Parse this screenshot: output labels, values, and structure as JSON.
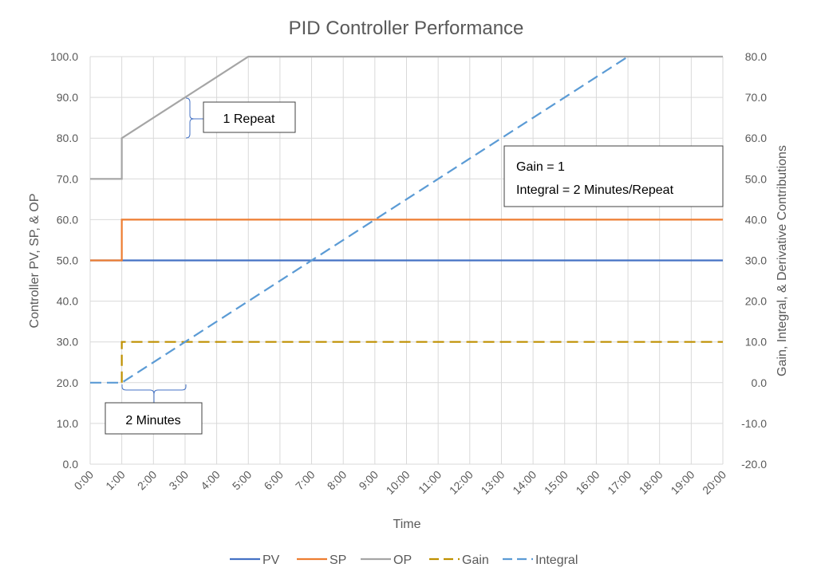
{
  "chart_data": {
    "type": "line",
    "title": "PID Controller Performance",
    "xlabel": "Time",
    "ylabel": "Controller PV, SP, & OP",
    "y2label": "Gain, Integral, & Derivative Contributions",
    "xlim": [
      0,
      20
    ],
    "ylim": [
      0,
      100
    ],
    "y2lim": [
      -20,
      80
    ],
    "grid": true,
    "legend": "bottom",
    "x_ticks": [
      "0:00",
      "1:00",
      "2:00",
      "3:00",
      "4:00",
      "5:00",
      "6:00",
      "7:00",
      "8:00",
      "9:00",
      "10:00",
      "11:00",
      "12:00",
      "13:00",
      "14:00",
      "15:00",
      "16:00",
      "17:00",
      "18:00",
      "19:00",
      "20:00"
    ],
    "y_ticks": [
      "0.0",
      "10.0",
      "20.0",
      "30.0",
      "40.0",
      "50.0",
      "60.0",
      "70.0",
      "80.0",
      "90.0",
      "100.0"
    ],
    "y2_ticks": [
      "-20.0",
      "-10.0",
      "0.0",
      "10.0",
      "20.0",
      "30.0",
      "40.0",
      "50.0",
      "60.0",
      "70.0",
      "80.0"
    ],
    "series": [
      {
        "name": "PV",
        "axis": "left",
        "color": "#4472C4",
        "dash": false,
        "points": [
          [
            "0:00",
            50
          ],
          [
            "20:00",
            50
          ]
        ]
      },
      {
        "name": "SP",
        "axis": "left",
        "color": "#ED7D31",
        "dash": false,
        "points": [
          [
            "0:00",
            50
          ],
          [
            "1:00",
            50
          ],
          [
            "1:00",
            60
          ],
          [
            "20:00",
            60
          ]
        ]
      },
      {
        "name": "OP",
        "axis": "left",
        "color": "#A5A5A5",
        "dash": false,
        "points": [
          [
            "0:00",
            70
          ],
          [
            "1:00",
            70
          ],
          [
            "1:00",
            80
          ],
          [
            "5:00",
            100
          ],
          [
            "20:00",
            100
          ]
        ]
      },
      {
        "name": "Gain",
        "axis": "right",
        "color": "#BF9000",
        "dash": true,
        "points": [
          [
            "1:00",
            0
          ],
          [
            "1:00",
            10
          ],
          [
            "20:00",
            10
          ]
        ]
      },
      {
        "name": "Integral",
        "axis": "right",
        "color": "#5B9BD5",
        "dash": true,
        "points": [
          [
            "0:00",
            0
          ],
          [
            "1:00",
            0
          ],
          [
            "17:00",
            80
          ]
        ]
      }
    ],
    "annotations": {
      "repeat": "1 Repeat",
      "minutes": "2 Minutes",
      "settings": [
        "Gain = 1",
        "Integral = 2 Minutes/Repeat"
      ]
    }
  }
}
